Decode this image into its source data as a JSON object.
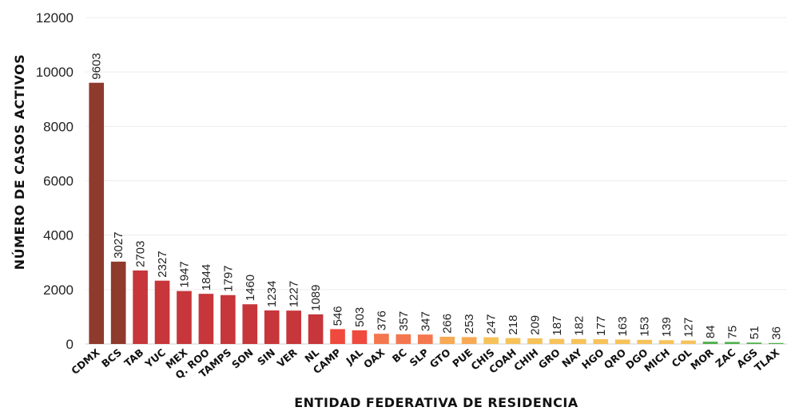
{
  "chart_data": {
    "type": "bar",
    "xlabel": "ENTIDAD FEDERATIVA DE RESIDENCIA",
    "ylabel": "NÚMERO DE CASOS ACTIVOS",
    "ylim": [
      0,
      12000
    ],
    "yticks": [
      0,
      2000,
      4000,
      6000,
      8000,
      10000,
      12000
    ],
    "grid": true,
    "categories": [
      "CDMX",
      "BCS",
      "TAB",
      "YUC",
      "MEX",
      "Q. ROO",
      "TAMPS",
      "SON",
      "SIN",
      "VER",
      "NL",
      "CAMP",
      "JAL",
      "OAX",
      "BC",
      "SLP",
      "GTO",
      "PUE",
      "CHIS",
      "COAH",
      "CHIH",
      "GRO",
      "NAY",
      "HGO",
      "QRO",
      "DGO",
      "MICH",
      "COL",
      "MOR",
      "ZAC",
      "AGS",
      "TLAX"
    ],
    "values": [
      9603,
      3027,
      2703,
      2327,
      1947,
      1844,
      1797,
      1460,
      1234,
      1227,
      1089,
      546,
      503,
      376,
      357,
      347,
      266,
      253,
      247,
      218,
      209,
      187,
      182,
      177,
      163,
      153,
      139,
      127,
      84,
      75,
      51,
      36
    ],
    "value_labels": [
      "9603",
      "3027",
      "2703",
      "2327",
      "1947",
      "1844",
      "1797",
      "1460",
      "1234",
      "1227",
      "1089",
      "546",
      "503",
      "376",
      "357",
      "347",
      "266",
      "253",
      "247",
      "218",
      "209",
      "187",
      "182",
      "177",
      "163",
      "153",
      "139",
      "127",
      "84",
      "75",
      "51",
      "36"
    ],
    "colors": [
      "#8e3a2c",
      "#8e3a2c",
      "#c6363a",
      "#c6363a",
      "#c6363a",
      "#c6363a",
      "#c6363a",
      "#c6363a",
      "#c6363a",
      "#c6363a",
      "#c6363a",
      "#ef4a3d",
      "#ef4a3d",
      "#f4774f",
      "#f4774f",
      "#f4774f",
      "#f7a955",
      "#f7a955",
      "#f6c25a",
      "#f6c25a",
      "#f6c25a",
      "#f6c25a",
      "#f6c25a",
      "#f6c25a",
      "#f6c25a",
      "#f6c25a",
      "#f6c25a",
      "#f6c25a",
      "#4fb04a",
      "#4fb04a",
      "#4fb04a",
      "#4fb04a"
    ]
  }
}
